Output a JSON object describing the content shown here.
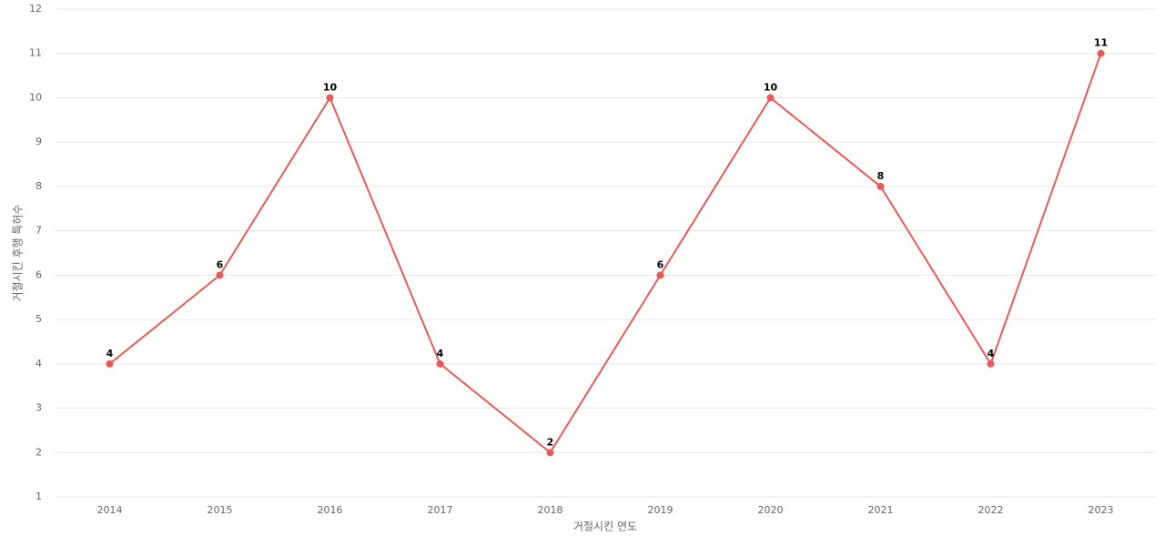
{
  "chart_data": {
    "type": "line",
    "x_label": "거절시킨 연도",
    "y_label": "거절시킨 후행 특허수",
    "categories": [
      "2014",
      "2015",
      "2016",
      "2017",
      "2018",
      "2019",
      "2020",
      "2021",
      "2022",
      "2023"
    ],
    "values": [
      4,
      6,
      10,
      4,
      2,
      6,
      10,
      8,
      4,
      11
    ],
    "color": "#e85a5a",
    "ylim": [
      1,
      12
    ],
    "yticks": [
      1,
      2,
      3,
      4,
      5,
      6,
      7,
      8,
      9,
      10,
      11,
      12
    ],
    "grid": true,
    "data_labels": true
  }
}
